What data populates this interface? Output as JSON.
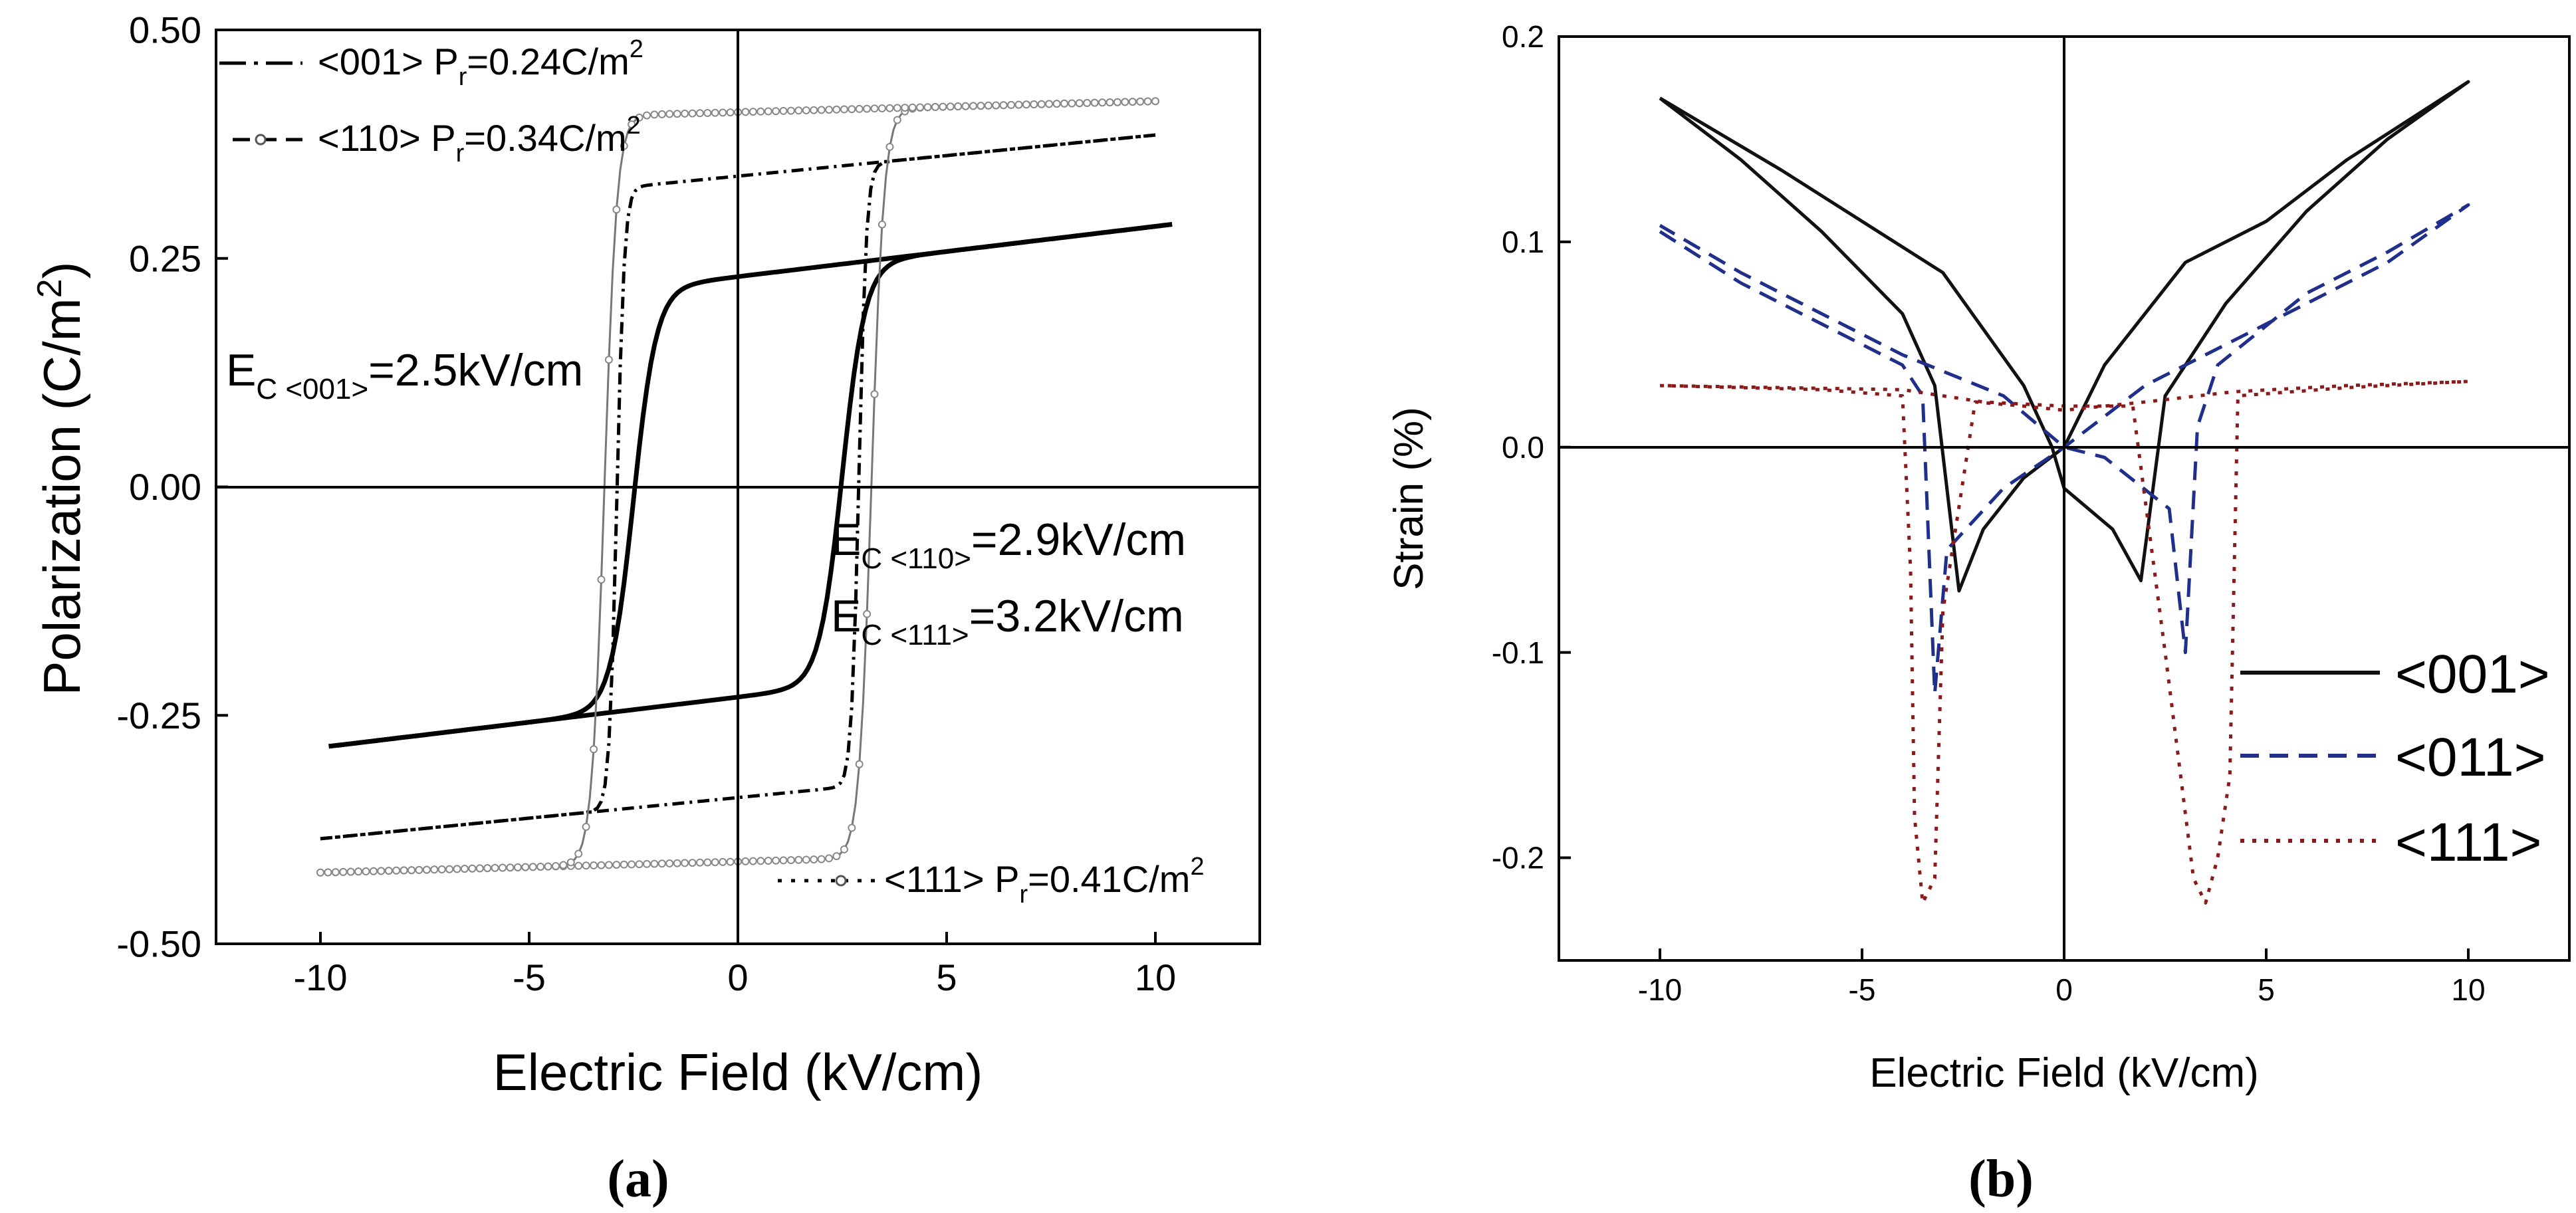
{
  "panel_a_label": "(a)",
  "panel_b_label": "(b)",
  "chart_data": [
    {
      "type": "line",
      "panel": "(a)",
      "title": "",
      "xlabel": "Electric Field (kV/cm)",
      "ylabel_parts": [
        "Polarization (C/m",
        "2",
        ")"
      ],
      "xlim": [
        -12.5,
        12.5
      ],
      "ylim": [
        -0.5,
        0.5
      ],
      "xticks": [
        -10,
        -5,
        0,
        5,
        10
      ],
      "xtick_labels": [
        "-10",
        "-5",
        "0",
        "5",
        "10"
      ],
      "yticks": [
        -0.5,
        -0.25,
        0,
        0.25,
        0.5
      ],
      "ytick_labels": [
        "-0.50",
        "-0.25",
        "0.00",
        "0.25",
        "0.50"
      ],
      "grid": false,
      "legend": [
        {
          "orientation": "<001>",
          "pr_value": "=0.24C/m",
          "sup": "2",
          "P": "P",
          "r": "r"
        },
        {
          "orientation": "<110>",
          "pr_value": "=0.34C/m",
          "sup": "2",
          "P": "P",
          "r": "r"
        },
        {
          "orientation": "<111>",
          "pr_value": "=0.41C/m",
          "sup": "2",
          "P": "P",
          "r": "r"
        }
      ],
      "annotations": [
        {
          "E": "E",
          "sub": "C <001>",
          "value": "=2.5kV/cm"
        },
        {
          "E": "E",
          "sub": "C <110>",
          "value": "=2.9kV/cm"
        },
        {
          "E": "E",
          "sub": "C <111>",
          "value": "=3.2kV/cm"
        }
      ],
      "series": [
        {
          "name": "<001>",
          "Ps": 0.23,
          "Pmax": 0.285,
          "Emax": 10.4,
          "Emin": -9.8,
          "Ec": 2.5,
          "w": 0.55,
          "slope": 0.0055
        },
        {
          "name": "<110>",
          "Ps": 0.34,
          "Pmax": 0.385,
          "Emax": 10.0,
          "Emin": -10.0,
          "Ec": 2.9,
          "w": 0.18,
          "slope": 0.0045
        },
        {
          "name": "<111>",
          "Ps": 0.41,
          "Pmax": 0.42,
          "Emax": 10.0,
          "Emin": -10.0,
          "Ec": 3.2,
          "w": 0.3,
          "slope": 0.0012
        }
      ]
    },
    {
      "type": "line",
      "panel": "(b)",
      "title": "",
      "xlabel": "Electric Field (kV/cm)",
      "ylabel": "Strain (%)",
      "xlim": [
        -12.5,
        12.5
      ],
      "ylim": [
        -0.25,
        0.2
      ],
      "xticks": [
        -10,
        -5,
        0,
        5,
        10
      ],
      "xtick_labels": [
        "-10",
        "-5",
        "0",
        "5",
        "10"
      ],
      "yticks": [
        -0.2,
        -0.1,
        0,
        0.1,
        0.2
      ],
      "ytick_labels": [
        "-0.2",
        "-0.1",
        "0.0",
        "0.1",
        "0.2"
      ],
      "grid": false,
      "legend_position": "lower-right",
      "series": [
        {
          "name": "<001>",
          "color": "#111111",
          "style": "solid",
          "points": [
            [
              -10.0,
              0.17
            ],
            [
              -8.0,
              0.14
            ],
            [
              -6.0,
              0.105
            ],
            [
              -4.0,
              0.065
            ],
            [
              -3.2,
              0.03
            ],
            [
              -2.6,
              -0.07
            ],
            [
              -2.0,
              -0.04
            ],
            [
              -1.0,
              -0.015
            ],
            [
              0.0,
              0.0
            ],
            [
              1.0,
              0.04
            ],
            [
              3.0,
              0.09
            ],
            [
              5.0,
              0.11
            ],
            [
              7.0,
              0.14
            ],
            [
              10.0,
              0.178
            ],
            [
              8.0,
              0.15
            ],
            [
              6.0,
              0.115
            ],
            [
              4.0,
              0.07
            ],
            [
              2.5,
              0.025
            ],
            [
              1.9,
              -0.065
            ],
            [
              1.2,
              -0.04
            ],
            [
              0.0,
              -0.02
            ],
            [
              -0.3,
              0.0
            ],
            [
              -1.0,
              0.03
            ],
            [
              -3.0,
              0.085
            ],
            [
              -5.0,
              0.11
            ],
            [
              -7.0,
              0.135
            ],
            [
              -10.0,
              0.17
            ]
          ]
        },
        {
          "name": "<011>",
          "color": "#1f2f8a",
          "style": "dashed",
          "points": [
            [
              -10.0,
              0.105
            ],
            [
              -8.0,
              0.08
            ],
            [
              -6.0,
              0.06
            ],
            [
              -4.0,
              0.04
            ],
            [
              -3.5,
              0.025
            ],
            [
              -3.2,
              -0.12
            ],
            [
              -2.9,
              -0.05
            ],
            [
              -1.5,
              -0.02
            ],
            [
              0.0,
              0.0
            ],
            [
              2.0,
              0.03
            ],
            [
              4.0,
              0.05
            ],
            [
              6.0,
              0.07
            ],
            [
              8.0,
              0.09
            ],
            [
              10.0,
              0.118
            ],
            [
              8.0,
              0.095
            ],
            [
              6.0,
              0.075
            ],
            [
              3.8,
              0.04
            ],
            [
              3.3,
              0.01
            ],
            [
              3.0,
              -0.1
            ],
            [
              2.6,
              -0.03
            ],
            [
              1.0,
              -0.005
            ],
            [
              0.0,
              0.0
            ],
            [
              -1.5,
              0.025
            ],
            [
              -4.0,
              0.045
            ],
            [
              -6.0,
              0.065
            ],
            [
              -8.0,
              0.085
            ],
            [
              -10.0,
              0.108
            ]
          ]
        },
        {
          "name": "<111>",
          "color": "#8b1a1a",
          "style": "dotted",
          "points": [
            [
              -10.0,
              0.03
            ],
            [
              -6.0,
              0.028
            ],
            [
              -4.0,
              0.025
            ],
            [
              -3.8,
              -0.06
            ],
            [
              -3.7,
              -0.18
            ],
            [
              -3.5,
              -0.222
            ],
            [
              -3.2,
              -0.21
            ],
            [
              -3.0,
              -0.08
            ],
            [
              -2.2,
              0.022
            ],
            [
              -1.0,
              0.02
            ],
            [
              0.0,
              0.018
            ],
            [
              2.0,
              0.022
            ],
            [
              4.2,
              0.027
            ],
            [
              7.0,
              0.03
            ],
            [
              10.0,
              0.032
            ],
            [
              7.0,
              0.029
            ],
            [
              4.3,
              0.025
            ],
            [
              4.1,
              -0.16
            ],
            [
              3.8,
              -0.2
            ],
            [
              3.5,
              -0.222
            ],
            [
              3.2,
              -0.21
            ],
            [
              2.5,
              -0.1
            ],
            [
              1.7,
              0.02
            ],
            [
              0.0,
              0.02
            ],
            [
              -2.0,
              0.022
            ],
            [
              -4.0,
              0.028
            ],
            [
              -10.0,
              0.03
            ]
          ]
        }
      ]
    }
  ]
}
